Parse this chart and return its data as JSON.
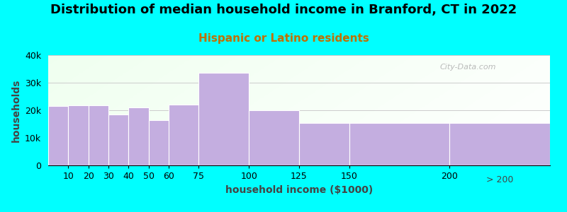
{
  "title": "Distribution of median household income in Branford, CT in 2022",
  "subtitle": "Hispanic or Latino residents",
  "xlabel": "household income ($1000)",
  "ylabel": "households",
  "bar_color": "#c4aee0",
  "bar_edgecolor": "#ffffff",
  "background_outer": "#00ffff",
  "background_plot_left": "#d8f0d8",
  "background_plot_right": "#f0f8f0",
  "categories": [
    "10",
    "20",
    "30",
    "40",
    "50",
    "60",
    "75",
    "100",
    "125",
    "150",
    "200",
    "> 200"
  ],
  "bin_left": [
    0,
    10,
    20,
    30,
    40,
    50,
    60,
    75,
    100,
    125,
    150,
    200
  ],
  "bin_right": [
    10,
    20,
    30,
    40,
    50,
    60,
    75,
    100,
    125,
    150,
    200,
    250
  ],
  "values": [
    21500,
    21800,
    21800,
    18500,
    21000,
    16500,
    22000,
    33500,
    20000,
    15500,
    15500,
    15500
  ],
  "ylim": [
    0,
    40000
  ],
  "xlim": [
    0,
    250
  ],
  "yticks": [
    0,
    10000,
    20000,
    30000,
    40000
  ],
  "ytick_labels": [
    "0",
    "10k",
    "20k",
    "30k",
    "40k"
  ],
  "xtick_positions": [
    10,
    20,
    30,
    40,
    50,
    60,
    75,
    100,
    125,
    150,
    200
  ],
  "xtick_labels": [
    "10",
    "20",
    "30",
    "40",
    "50",
    "60",
    "75",
    "100",
    "125",
    "150",
    "200"
  ],
  "title_fontsize": 13,
  "subtitle_fontsize": 11,
  "subtitle_color": "#c07000",
  "axis_label_fontsize": 10,
  "watermark": "City-Data.com"
}
